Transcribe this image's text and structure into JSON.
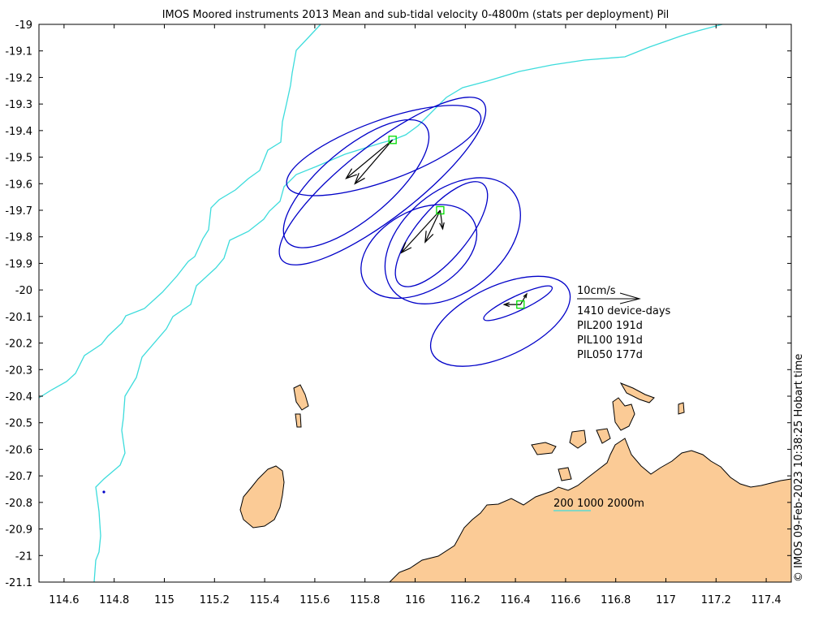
{
  "title": "IMOS Moored instruments 2013 Mean and sub-tidal velocity 0-4800m (stats per deployment) Pil",
  "credit": "© IMOS 09-Feb-2023 10:38:25 Hobart time",
  "colors": {
    "land": "#fbcb96",
    "coastline": "#000000",
    "bathymetry": "#3ddcdc",
    "ellipse": "#0000c8",
    "mooring": "#00dd00",
    "arrow": "#000000"
  },
  "chart_data": {
    "type": "map",
    "x_axis": {
      "min": 114.5,
      "max": 117.5,
      "ticks": [
        114.6,
        114.8,
        115,
        115.2,
        115.4,
        115.6,
        115.8,
        116,
        116.2,
        116.4,
        116.6,
        116.8,
        117,
        117.2,
        117.4
      ],
      "tick_labels": [
        "114.6",
        "114.8",
        "115",
        "115.2",
        "115.4",
        "115.6",
        "115.8",
        "116",
        "116.2",
        "116.4",
        "116.6",
        "116.8",
        "117",
        "117.2",
        "117.4"
      ]
    },
    "y_axis": {
      "min": -21.1,
      "max": -19,
      "ticks": [
        -19,
        -19.1,
        -19.2,
        -19.3,
        -19.4,
        -19.5,
        -19.6,
        -19.7,
        -19.8,
        -19.9,
        -20,
        -20.1,
        -20.2,
        -20.3,
        -20.4,
        -20.5,
        -20.6,
        -20.7,
        -20.8,
        -20.9,
        -21,
        -21.1
      ],
      "tick_labels": [
        "-19",
        "-19.1",
        "-19.2",
        "-19.3",
        "-19.4",
        "-19.5",
        "-19.6",
        "-19.7",
        "-19.8",
        "-19.9",
        "-20",
        "-20.1",
        "-20.2",
        "-20.3",
        "-20.4",
        "-20.5",
        "-20.6",
        "-20.7",
        "-20.8",
        "-20.9",
        "-21",
        "-21.1"
      ]
    },
    "moorings": [
      {
        "name": "PIL200",
        "lon": 115.91,
        "lat": -19.435,
        "days": "191d",
        "ellipses": [
          {
            "clon": 115.875,
            "clat": -19.475,
            "a": 0.41,
            "b": 0.12,
            "angle": -20
          },
          {
            "clon": 115.87,
            "clat": -19.59,
            "a": 0.51,
            "b": 0.145,
            "angle": -38
          },
          {
            "clon": 115.765,
            "clat": -19.6,
            "a": 0.36,
            "b": 0.14,
            "angle": -40
          }
        ],
        "arrows": [
          {
            "elon": 115.725,
            "elat": -19.58
          },
          {
            "elon": 115.76,
            "elat": -19.6
          }
        ]
      },
      {
        "name": "PIL100",
        "lon": 116.1,
        "lat": -19.7,
        "days": "191d",
        "ellipses": [
          {
            "clon": 116.15,
            "clat": -19.815,
            "a": 0.31,
            "b": 0.2,
            "angle": -40
          },
          {
            "clon": 116.105,
            "clat": -19.79,
            "a": 0.26,
            "b": 0.1,
            "angle": -50
          },
          {
            "clon": 116.015,
            "clat": -19.855,
            "a": 0.25,
            "b": 0.16,
            "angle": -30
          }
        ],
        "arrows": [
          {
            "elon": 115.945,
            "elat": -19.86
          },
          {
            "elon": 116.04,
            "elat": -19.82
          },
          {
            "elon": 116.11,
            "elat": -19.77
          }
        ]
      },
      {
        "name": "PIL050",
        "lon": 116.42,
        "lat": -20.055,
        "days": "177d",
        "ellipses": [
          {
            "clon": 116.34,
            "clat": -20.118,
            "a": 0.3,
            "b": 0.14,
            "angle": -25
          },
          {
            "clon": 116.41,
            "clat": -20.05,
            "a": 0.15,
            "b": 0.03,
            "angle": -25
          }
        ],
        "arrows": [
          {
            "elon": 116.355,
            "elat": -20.055
          },
          {
            "elon": 116.445,
            "elat": -20.015
          }
        ]
      }
    ],
    "legend": {
      "scale_label": "10cm/s",
      "device_days": "1410 device-days",
      "rows": [
        "PIL200 191d",
        "PIL100 191d",
        "PIL050 177d"
      ],
      "bathymetry_label": "200 1000 2000m"
    }
  }
}
